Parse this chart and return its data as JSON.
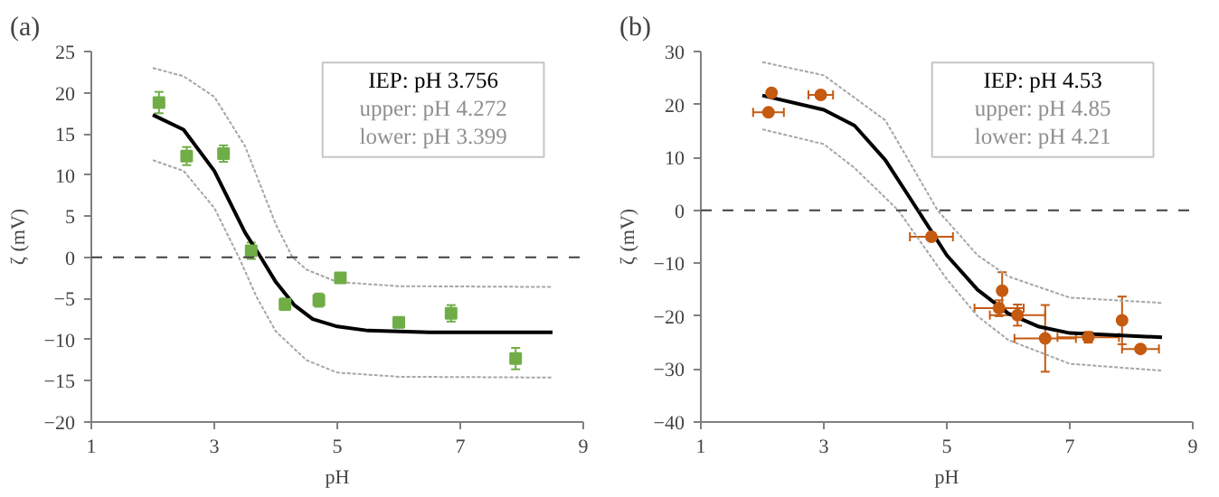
{
  "chart_data": [
    {
      "type": "scatter",
      "title": "(a)",
      "xlabel": "pH",
      "ylabel": "ζ (mV)",
      "xlim": [
        1,
        9
      ],
      "ylim": [
        -20,
        25
      ],
      "xticks": [
        1,
        3,
        5,
        7,
        9
      ],
      "yticks": [
        -20,
        -15,
        -10,
        -5,
        0,
        5,
        10,
        15,
        20,
        25
      ],
      "grid": false,
      "annotations": [
        "IEP: pH 3.756",
        "upper: pH 4.272",
        "lower: pH 3.399"
      ],
      "ref_lines": [
        {
          "axis": "y",
          "value": 0,
          "color": "#404040",
          "line_style": "dashed"
        }
      ],
      "series": [
        {
          "type": "line",
          "color": "#000000",
          "line_style": "solid",
          "x": [
            2,
            2.5,
            3,
            3.3,
            3.5,
            3.756,
            4,
            4.3,
            4.6,
            5,
            5.5,
            6.5,
            8.5
          ],
          "values": [
            17.3,
            15.5,
            10.5,
            6,
            3,
            0,
            -3,
            -5.8,
            -7.5,
            -8.4,
            -8.9,
            -9.1,
            -9.1
          ]
        },
        {
          "type": "line",
          "color": "#a6a6a6",
          "line_style": "dotted",
          "x": [
            2,
            2.5,
            3,
            3.5,
            4,
            4.272,
            4.5,
            5,
            6,
            8.5
          ],
          "values": [
            23,
            22,
            19.5,
            13.5,
            4,
            0,
            -1.5,
            -3,
            -3.5,
            -3.6
          ]
        },
        {
          "type": "line",
          "color": "#a6a6a6",
          "line_style": "dotted",
          "x": [
            2,
            2.5,
            3,
            3.399,
            3.7,
            4,
            4.5,
            5,
            6,
            8.5
          ],
          "values": [
            11.8,
            10.5,
            6,
            0,
            -5,
            -9,
            -12.5,
            -14,
            -14.5,
            -14.6
          ]
        },
        {
          "type": "scatter",
          "color": "#70ad47",
          "marker": "square",
          "x": [
            2.1,
            2.55,
            3.15,
            3.6,
            4.15,
            4.7,
            5.05,
            6.0,
            6.85,
            7.9
          ],
          "values": [
            18.8,
            12.3,
            12.6,
            0.8,
            -5.7,
            -5.2,
            -2.5,
            -7.9,
            -6.8,
            -12.3
          ],
          "errors": [
            1.3,
            1.1,
            1,
            1,
            0.7,
            0.8,
            0.3,
            0.6,
            1,
            1.3
          ]
        }
      ]
    },
    {
      "type": "scatter",
      "title": "(b)",
      "xlabel": "pH",
      "ylabel": "ζ (mV)",
      "xlim": [
        1,
        9
      ],
      "ylim": [
        -40,
        30
      ],
      "xticks": [
        1,
        3,
        5,
        7,
        9
      ],
      "yticks": [
        -40,
        -30,
        -20,
        -10,
        0,
        10,
        20,
        30
      ],
      "grid": false,
      "annotations": [
        "IEP: pH 4.53",
        "upper: pH 4.85",
        "lower: pH 4.21"
      ],
      "ref_lines": [
        {
          "axis": "y",
          "value": 0,
          "color": "#404040",
          "line_style": "dashed"
        }
      ],
      "series": [
        {
          "type": "line",
          "color": "#000000",
          "line_style": "solid",
          "x": [
            2,
            3,
            3.5,
            4,
            4.53,
            5,
            5.5,
            6,
            6.5,
            7,
            8.5
          ],
          "values": [
            21.7,
            19,
            16,
            9.5,
            0,
            -8.5,
            -15,
            -19.5,
            -22,
            -23.2,
            -24
          ]
        },
        {
          "type": "line",
          "color": "#a6a6a6",
          "line_style": "dotted",
          "x": [
            2,
            3,
            4,
            4.5,
            4.85,
            5.5,
            6,
            7,
            8.5
          ],
          "values": [
            28,
            25.5,
            17,
            7,
            0,
            -8.5,
            -12.5,
            -16.5,
            -17.5
          ]
        },
        {
          "type": "line",
          "color": "#a6a6a6",
          "line_style": "dotted",
          "x": [
            2,
            3,
            3.5,
            4.21,
            5,
            5.5,
            6,
            7,
            8.5
          ],
          "values": [
            15.3,
            12.5,
            8,
            0,
            -13,
            -20,
            -24.5,
            -29,
            -30.3
          ]
        },
        {
          "type": "scatter",
          "color": "#c55a11",
          "marker": "circle",
          "x": [
            2.1,
            2.15,
            2.95,
            4.75,
            5.85,
            5.9,
            6.15,
            6.6,
            7.3,
            7.85,
            8.15
          ],
          "values": [
            18.5,
            22.2,
            21.8,
            -5,
            -18.5,
            -15.2,
            -19.8,
            -24.2,
            -24,
            -20.8,
            -26.2
          ],
          "errors": [
            null,
            null,
            null,
            null,
            1.5,
            3.5,
            2,
            6.3,
            1,
            4.5,
            null
          ],
          "xerrors": [
            0.25,
            null,
            0.2,
            0.35,
            0.4,
            null,
            0.45,
            0.5,
            0.5,
            null,
            0.3
          ]
        }
      ]
    }
  ]
}
